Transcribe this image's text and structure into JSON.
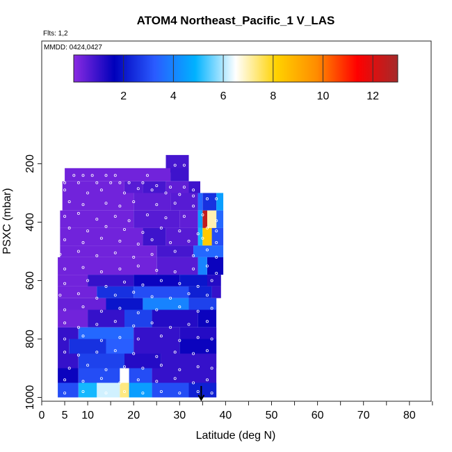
{
  "header": {
    "flights_text": "Flts: 1,2",
    "dates_text": "MMDD: 0424,0427"
  },
  "chart_data": {
    "type": "heatmap",
    "title": "ATOM4 Northeast_Pacific_1 V_LAS",
    "xlabel": "Latitude (deg N)",
    "ylabel": "PSXC (mbar)",
    "xlim": [
      0,
      85
    ],
    "ylim": [
      1000,
      0
    ],
    "x_ticks": [
      0,
      5,
      10,
      20,
      30,
      40,
      50,
      60,
      70,
      80
    ],
    "x_minor_ticks": [
      15,
      25,
      35,
      45,
      55,
      65,
      75,
      85
    ],
    "y_ticks": [
      200,
      400,
      600,
      800,
      1000
    ],
    "colorbar": {
      "range": [
        0,
        13
      ],
      "ticks": [
        2,
        4,
        6,
        8,
        10,
        12
      ],
      "colors": [
        "#8a2be2",
        "#0000bb",
        "#2a5bff",
        "#00b2ff",
        "#ffffff",
        "#ffd200",
        "#ff8c00",
        "#ff0000",
        "#a52a2a"
      ]
    },
    "latitude_arrow": 34.7,
    "layers": [
      {
        "p_top": 170,
        "p_bot": 230,
        "segments": [
          [
            27,
            32,
            0.8
          ]
        ]
      },
      {
        "p_top": 215,
        "p_bot": 260,
        "segments": [
          [
            5,
            28,
            0.3
          ],
          [
            28,
            32,
            0.9
          ]
        ]
      },
      {
        "p_top": 260,
        "p_bot": 300,
        "segments": [
          [
            4.5,
            18,
            0.3
          ],
          [
            18,
            22,
            0.6
          ],
          [
            22,
            27,
            0.8
          ],
          [
            27,
            32,
            0.5
          ],
          [
            32,
            34.5,
            0.9
          ]
        ]
      },
      {
        "p_top": 300,
        "p_bot": 360,
        "segments": [
          [
            4.5,
            20,
            0.3
          ],
          [
            20,
            28,
            0.5
          ],
          [
            28,
            34,
            0.6
          ],
          [
            34,
            35,
            3.5
          ],
          [
            35,
            38,
            2.5
          ],
          [
            38,
            39.5,
            4.5
          ]
        ]
      },
      {
        "p_top": 360,
        "p_bot": 420,
        "segments": [
          [
            4,
            20,
            0.3
          ],
          [
            20,
            30,
            0.6
          ],
          [
            30,
            34,
            0.5
          ],
          [
            34,
            35,
            4.5
          ],
          [
            35,
            36,
            12.5
          ],
          [
            36,
            38,
            7.0
          ],
          [
            38,
            39.5,
            3.5
          ]
        ]
      },
      {
        "p_top": 420,
        "p_bot": 480,
        "segments": [
          [
            4,
            22,
            0.3
          ],
          [
            22,
            27,
            0.9
          ],
          [
            27,
            34,
            0.6
          ],
          [
            34,
            35,
            5.0
          ],
          [
            35,
            37,
            8.3
          ],
          [
            37,
            39.5,
            3.0
          ]
        ]
      },
      {
        "p_top": 480,
        "p_bot": 520,
        "segments": [
          [
            4,
            25,
            0.3
          ],
          [
            25,
            33,
            0.8
          ],
          [
            33,
            39.5,
            3.5
          ]
        ]
      },
      {
        "p_top": 520,
        "p_bot": 580,
        "segments": [
          [
            3.5,
            25,
            0.3
          ],
          [
            25,
            34,
            0.6
          ],
          [
            34,
            36,
            4.0
          ],
          [
            36,
            39.5,
            1.5
          ]
        ]
      },
      {
        "p_top": 580,
        "p_bot": 620,
        "segments": [
          [
            3.5,
            10,
            0.3
          ],
          [
            10,
            20,
            1.0
          ],
          [
            20,
            30,
            1.5
          ],
          [
            30,
            36,
            2.0
          ],
          [
            36,
            39,
            1.2
          ]
        ]
      },
      {
        "p_top": 620,
        "p_bot": 660,
        "segments": [
          [
            3.5,
            12,
            0.3
          ],
          [
            12,
            20,
            2.5
          ],
          [
            20,
            32,
            3.0
          ],
          [
            32,
            37,
            2.2
          ],
          [
            37,
            39,
            1.0
          ]
        ]
      },
      {
        "p_top": 660,
        "p_bot": 700,
        "segments": [
          [
            3.5,
            14,
            0.4
          ],
          [
            14,
            22,
            2.0
          ],
          [
            22,
            32,
            4.0
          ],
          [
            32,
            38,
            2.8
          ]
        ]
      },
      {
        "p_top": 700,
        "p_bot": 760,
        "segments": [
          [
            3.5,
            10,
            0.3
          ],
          [
            10,
            18,
            1.0
          ],
          [
            18,
            24,
            2.8
          ],
          [
            24,
            34,
            1.2
          ],
          [
            34,
            38,
            1.5
          ]
        ]
      },
      {
        "p_top": 760,
        "p_bot": 800,
        "segments": [
          [
            3.5,
            8,
            1.0
          ],
          [
            8,
            20,
            3.5
          ],
          [
            20,
            30,
            1.0
          ],
          [
            30,
            38,
            1.2
          ]
        ]
      },
      {
        "p_top": 800,
        "p_bot": 850,
        "segments": [
          [
            3.5,
            6,
            1.0
          ],
          [
            6,
            14,
            2.5
          ],
          [
            14,
            20,
            3.3
          ],
          [
            20,
            30,
            1.0
          ],
          [
            30,
            38,
            1.5
          ]
        ]
      },
      {
        "p_top": 850,
        "p_bot": 900,
        "segments": [
          [
            3.5,
            8,
            1.0
          ],
          [
            8,
            18,
            2.8
          ],
          [
            18,
            26,
            1.2
          ],
          [
            26,
            38,
            1.0
          ]
        ]
      },
      {
        "p_top": 900,
        "p_bot": 950,
        "segments": [
          [
            3.5,
            8,
            1.5
          ],
          [
            8,
            17,
            3.0
          ],
          [
            17,
            19,
            6.5
          ],
          [
            19,
            24,
            3.0
          ],
          [
            24,
            38,
            1.0
          ]
        ]
      },
      {
        "p_top": 950,
        "p_bot": 1000,
        "segments": [
          [
            3.5,
            8,
            3.0
          ],
          [
            8,
            12,
            5.0
          ],
          [
            12,
            17,
            6.2
          ],
          [
            17,
            19,
            7.3
          ],
          [
            19,
            24,
            4.5
          ],
          [
            24,
            32,
            3.0
          ],
          [
            32,
            38,
            2.2
          ]
        ]
      }
    ],
    "sample_points": [
      [
        7,
        240
      ],
      [
        9,
        240
      ],
      [
        11,
        240
      ],
      [
        14,
        240
      ],
      [
        16,
        240
      ],
      [
        23,
        240
      ],
      [
        29,
        205
      ],
      [
        31,
        205
      ],
      [
        5,
        265
      ],
      [
        8,
        265
      ],
      [
        12,
        265
      ],
      [
        15,
        265
      ],
      [
        17,
        265
      ],
      [
        19,
        265
      ],
      [
        22,
        265
      ],
      [
        25,
        275
      ],
      [
        28,
        280
      ],
      [
        31,
        280
      ],
      [
        33,
        290
      ],
      [
        5,
        290
      ],
      [
        10,
        300
      ],
      [
        13,
        290
      ],
      [
        18,
        300
      ],
      [
        21,
        285
      ],
      [
        24,
        290
      ],
      [
        27,
        300
      ],
      [
        30,
        305
      ],
      [
        33,
        310
      ],
      [
        6,
        330
      ],
      [
        9,
        340
      ],
      [
        14,
        335
      ],
      [
        17,
        345
      ],
      [
        20,
        330
      ],
      [
        25,
        340
      ],
      [
        29,
        335
      ],
      [
        33,
        345
      ],
      [
        36,
        320
      ],
      [
        38,
        320
      ],
      [
        5,
        380
      ],
      [
        8,
        370
      ],
      [
        12,
        390
      ],
      [
        16,
        380
      ],
      [
        19,
        395
      ],
      [
        23,
        375
      ],
      [
        27,
        385
      ],
      [
        31,
        380
      ],
      [
        35,
        375
      ],
      [
        38,
        395
      ],
      [
        6,
        420
      ],
      [
        10,
        430
      ],
      [
        14,
        415
      ],
      [
        18,
        425
      ],
      [
        22,
        435
      ],
      [
        26,
        420
      ],
      [
        30,
        430
      ],
      [
        34,
        440
      ],
      [
        36,
        420
      ],
      [
        38,
        430
      ],
      [
        5,
        460
      ],
      [
        9,
        470
      ],
      [
        13,
        455
      ],
      [
        17,
        465
      ],
      [
        21,
        475
      ],
      [
        24,
        460
      ],
      [
        28,
        470
      ],
      [
        32,
        465
      ],
      [
        35,
        455
      ],
      [
        38,
        470
      ],
      [
        4,
        510
      ],
      [
        8,
        500
      ],
      [
        12,
        515
      ],
      [
        16,
        505
      ],
      [
        20,
        520
      ],
      [
        24,
        510
      ],
      [
        29,
        500
      ],
      [
        33,
        515
      ],
      [
        36,
        495
      ],
      [
        38,
        520
      ],
      [
        5,
        560
      ],
      [
        9,
        555
      ],
      [
        13,
        570
      ],
      [
        17,
        560
      ],
      [
        21,
        550
      ],
      [
        25,
        565
      ],
      [
        29,
        570
      ],
      [
        33,
        560
      ],
      [
        36,
        550
      ],
      [
        38,
        575
      ],
      [
        5,
        610
      ],
      [
        10,
        600
      ],
      [
        14,
        620
      ],
      [
        18,
        605
      ],
      [
        22,
        615
      ],
      [
        26,
        600
      ],
      [
        30,
        610
      ],
      [
        34,
        620
      ],
      [
        37,
        600
      ],
      [
        4,
        650
      ],
      [
        8,
        645
      ],
      [
        12,
        660
      ],
      [
        16,
        650
      ],
      [
        20,
        640
      ],
      [
        24,
        655
      ],
      [
        28,
        660
      ],
      [
        32,
        645
      ],
      [
        36,
        650
      ],
      [
        5,
        700
      ],
      [
        9,
        690
      ],
      [
        13,
        705
      ],
      [
        17,
        695
      ],
      [
        21,
        710
      ],
      [
        25,
        700
      ],
      [
        30,
        690
      ],
      [
        34,
        705
      ],
      [
        37,
        695
      ],
      [
        5,
        745
      ],
      [
        8,
        760
      ],
      [
        12,
        750
      ],
      [
        16,
        740
      ],
      [
        20,
        755
      ],
      [
        24,
        745
      ],
      [
        28,
        760
      ],
      [
        32,
        750
      ],
      [
        36,
        740
      ],
      [
        5,
        800
      ],
      [
        9,
        790
      ],
      [
        13,
        805
      ],
      [
        17,
        795
      ],
      [
        21,
        800
      ],
      [
        26,
        790
      ],
      [
        30,
        805
      ],
      [
        34,
        795
      ],
      [
        37,
        800
      ],
      [
        5,
        845
      ],
      [
        8,
        855
      ],
      [
        12,
        845
      ],
      [
        16,
        840
      ],
      [
        20,
        850
      ],
      [
        25,
        860
      ],
      [
        29,
        845
      ],
      [
        33,
        850
      ],
      [
        36,
        840
      ],
      [
        6,
        900
      ],
      [
        10,
        890
      ],
      [
        14,
        905
      ],
      [
        18,
        895
      ],
      [
        22,
        900
      ],
      [
        26,
        890
      ],
      [
        30,
        905
      ],
      [
        34,
        895
      ],
      [
        37,
        900
      ],
      [
        5,
        940
      ],
      [
        9,
        945
      ],
      [
        13,
        935
      ],
      [
        17,
        950
      ],
      [
        21,
        940
      ],
      [
        25,
        945
      ],
      [
        29,
        935
      ],
      [
        33,
        950
      ],
      [
        36,
        940
      ],
      [
        5,
        985
      ],
      [
        9,
        980
      ],
      [
        14,
        985
      ],
      [
        18,
        980
      ],
      [
        22,
        985
      ],
      [
        26,
        980
      ],
      [
        30,
        985
      ],
      [
        34,
        980
      ],
      [
        37,
        985
      ]
    ]
  }
}
